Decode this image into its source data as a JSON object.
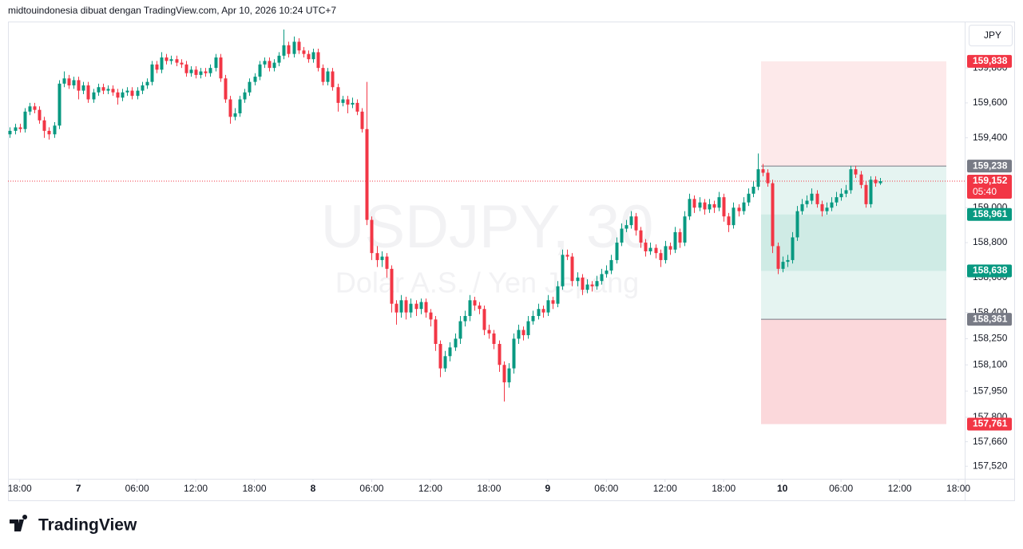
{
  "header": {
    "caption": "midtouindonesia dibuat dengan TradingView.com, Apr 10, 2026 10:24 UTC+7",
    "currency_button": "JPY"
  },
  "footer": {
    "brand": "TradingView"
  },
  "chart_data": {
    "type": "candlestick",
    "title": "USDJPY, 30",
    "subtitle": "Dolar A.S. / Yen Jepang",
    "up_color": "#089981",
    "down_color": "#f23645",
    "xlim": [
      -0.4,
      195.3
    ],
    "xticks": [
      {
        "value": 2,
        "label": "18:00"
      },
      {
        "value": 14,
        "label": "7"
      },
      {
        "value": 26,
        "label": "06:00"
      },
      {
        "value": 38,
        "label": "12:00"
      },
      {
        "value": 50,
        "label": "18:00"
      },
      {
        "value": 62,
        "label": "8"
      },
      {
        "value": 74,
        "label": "06:00"
      },
      {
        "value": 86,
        "label": "12:00"
      },
      {
        "value": 98,
        "label": "18:00"
      },
      {
        "value": 110,
        "label": "9"
      },
      {
        "value": 122,
        "label": "06:00"
      },
      {
        "value": 134,
        "label": "12:00"
      },
      {
        "value": 146,
        "label": "18:00"
      },
      {
        "value": 158,
        "label": "10"
      },
      {
        "value": 170,
        "label": "06:00"
      },
      {
        "value": 182,
        "label": "12:00"
      },
      {
        "value": 194,
        "label": "18:00"
      }
    ],
    "ylim": [
      157.448,
      160.061
    ],
    "yticks": [
      {
        "value": 159.8,
        "label": "159,800"
      },
      {
        "value": 159.6,
        "label": "159,600"
      },
      {
        "value": 159.4,
        "label": "159,400"
      },
      {
        "value": 159.0,
        "label": "159,000"
      },
      {
        "value": 158.8,
        "label": "158,800"
      },
      {
        "value": 158.6,
        "label": "158,600"
      },
      {
        "value": 158.4,
        "label": "158,400"
      },
      {
        "value": 158.25,
        "label": "158,250"
      },
      {
        "value": 158.1,
        "label": "158,100"
      },
      {
        "value": 157.95,
        "label": "157,950"
      },
      {
        "value": 157.8,
        "label": "157,800"
      },
      {
        "value": 157.66,
        "label": "157,660"
      },
      {
        "value": 157.52,
        "label": "157,520"
      }
    ],
    "zones": [
      {
        "top": 159.838,
        "bottom": 159.238,
        "color": "#fde9ea"
      },
      {
        "top": 159.238,
        "bottom": 158.361,
        "color": "#e5f4f1"
      },
      {
        "top": 158.961,
        "bottom": 158.638,
        "color": "#cfebe5"
      },
      {
        "top": 158.361,
        "bottom": 157.761,
        "color": "#fbd8db"
      }
    ],
    "price_tags": [
      {
        "value": 159.838,
        "label": "159,838",
        "color": "#f23645"
      },
      {
        "value": 159.238,
        "label": "159,238",
        "color": "#787b86"
      },
      {
        "value": 158.961,
        "label": "158,961",
        "color": "#089981"
      },
      {
        "value": 158.638,
        "label": "158,638",
        "color": "#089981"
      },
      {
        "value": 158.361,
        "label": "158,361",
        "color": "#787b86"
      },
      {
        "value": 157.761,
        "label": "157,761",
        "color": "#f23645"
      }
    ],
    "last_price": {
      "value": 159.152,
      "label": "159,152",
      "countdown": "05:40",
      "color": "#f23645"
    },
    "candles": [
      [
        159.42,
        159.46,
        159.4,
        159.44
      ],
      [
        159.44,
        159.48,
        159.42,
        159.46
      ],
      [
        159.46,
        159.48,
        159.43,
        159.45
      ],
      [
        159.45,
        159.57,
        159.43,
        159.55
      ],
      [
        159.55,
        159.6,
        159.53,
        159.58
      ],
      [
        159.58,
        159.6,
        159.54,
        159.56
      ],
      [
        159.56,
        159.58,
        159.48,
        159.5
      ],
      [
        159.5,
        159.52,
        159.4,
        159.44
      ],
      [
        159.44,
        159.46,
        159.39,
        159.42
      ],
      [
        159.42,
        159.49,
        159.4,
        159.47
      ],
      [
        159.47,
        159.73,
        159.45,
        159.71
      ],
      [
        159.71,
        159.78,
        159.69,
        159.74
      ],
      [
        159.74,
        159.76,
        159.68,
        159.7
      ],
      [
        159.7,
        159.75,
        159.68,
        159.73
      ],
      [
        159.73,
        159.75,
        159.62,
        159.67
      ],
      [
        159.67,
        159.72,
        159.65,
        159.7
      ],
      [
        159.7,
        159.72,
        159.6,
        159.62
      ],
      [
        159.62,
        159.68,
        159.6,
        159.66
      ],
      [
        159.66,
        159.71,
        159.64,
        159.69
      ],
      [
        159.69,
        159.71,
        159.65,
        159.67
      ],
      [
        159.67,
        159.7,
        159.65,
        159.68
      ],
      [
        159.68,
        159.7,
        159.64,
        159.66
      ],
      [
        159.66,
        159.68,
        159.59,
        159.63
      ],
      [
        159.63,
        159.68,
        159.61,
        159.66
      ],
      [
        159.66,
        159.69,
        159.64,
        159.67
      ],
      [
        159.67,
        159.69,
        159.62,
        159.64
      ],
      [
        159.64,
        159.69,
        159.62,
        159.67
      ],
      [
        159.67,
        159.72,
        159.65,
        159.7
      ],
      [
        159.7,
        159.74,
        159.68,
        159.72
      ],
      [
        159.72,
        159.84,
        159.7,
        159.82
      ],
      [
        159.82,
        159.84,
        159.77,
        159.79
      ],
      [
        159.79,
        159.89,
        159.77,
        159.86
      ],
      [
        159.86,
        159.88,
        159.82,
        159.84
      ],
      [
        159.84,
        159.87,
        159.82,
        159.85
      ],
      [
        159.85,
        159.87,
        159.81,
        159.83
      ],
      [
        159.83,
        159.85,
        159.8,
        159.82
      ],
      [
        159.82,
        159.84,
        159.75,
        159.77
      ],
      [
        159.77,
        159.81,
        159.75,
        159.79
      ],
      [
        159.79,
        159.81,
        159.74,
        159.76
      ],
      [
        159.76,
        159.8,
        159.74,
        159.78
      ],
      [
        159.78,
        159.8,
        159.75,
        159.77
      ],
      [
        159.77,
        159.82,
        159.75,
        159.8
      ],
      [
        159.8,
        159.88,
        159.78,
        159.86
      ],
      [
        159.86,
        159.88,
        159.72,
        159.74
      ],
      [
        159.74,
        159.76,
        159.6,
        159.62
      ],
      [
        159.62,
        159.64,
        159.48,
        159.52
      ],
      [
        159.52,
        159.57,
        159.5,
        159.54
      ],
      [
        159.54,
        159.64,
        159.52,
        159.62
      ],
      [
        159.62,
        159.68,
        159.6,
        159.66
      ],
      [
        159.66,
        159.74,
        159.64,
        159.72
      ],
      [
        159.72,
        159.77,
        159.7,
        159.75
      ],
      [
        159.75,
        159.84,
        159.73,
        159.82
      ],
      [
        159.82,
        159.86,
        159.8,
        159.84
      ],
      [
        159.84,
        159.86,
        159.78,
        159.8
      ],
      [
        159.8,
        159.85,
        159.78,
        159.83
      ],
      [
        159.83,
        159.89,
        159.81,
        159.87
      ],
      [
        159.87,
        160.02,
        159.85,
        159.93
      ],
      [
        159.93,
        159.95,
        159.86,
        159.88
      ],
      [
        159.88,
        159.98,
        159.86,
        159.95
      ],
      [
        159.95,
        159.97,
        159.88,
        159.9
      ],
      [
        159.9,
        159.92,
        159.86,
        159.88
      ],
      [
        159.88,
        159.9,
        159.83,
        159.85
      ],
      [
        159.85,
        159.91,
        159.83,
        159.89
      ],
      [
        159.89,
        159.91,
        159.78,
        159.8
      ],
      [
        159.8,
        159.82,
        159.7,
        159.72
      ],
      [
        159.72,
        159.8,
        159.7,
        159.78
      ],
      [
        159.78,
        159.8,
        159.67,
        159.69
      ],
      [
        159.69,
        159.71,
        159.55,
        159.6
      ],
      [
        159.6,
        159.64,
        159.58,
        159.62
      ],
      [
        159.62,
        159.64,
        159.54,
        159.59
      ],
      [
        159.59,
        159.63,
        159.57,
        159.6
      ],
      [
        159.6,
        159.62,
        159.53,
        159.55
      ],
      [
        159.55,
        159.57,
        159.43,
        159.45
      ],
      [
        159.45,
        159.72,
        158.9,
        158.93
      ],
      [
        158.93,
        158.95,
        158.7,
        158.74
      ],
      [
        158.74,
        158.78,
        158.66,
        158.7
      ],
      [
        158.7,
        158.75,
        158.66,
        158.72
      ],
      [
        158.72,
        158.74,
        158.6,
        158.65
      ],
      [
        158.65,
        158.67,
        158.4,
        158.45
      ],
      [
        158.45,
        158.47,
        158.33,
        158.4
      ],
      [
        158.4,
        158.5,
        158.37,
        158.47
      ],
      [
        158.47,
        158.49,
        158.36,
        158.4
      ],
      [
        158.4,
        158.48,
        158.37,
        158.45
      ],
      [
        158.45,
        158.47,
        158.38,
        158.42
      ],
      [
        158.42,
        158.48,
        158.39,
        158.46
      ],
      [
        158.46,
        158.48,
        158.37,
        158.4
      ],
      [
        158.4,
        158.42,
        158.32,
        158.36
      ],
      [
        158.36,
        158.38,
        158.18,
        158.22
      ],
      [
        158.22,
        158.24,
        158.03,
        158.08
      ],
      [
        158.08,
        158.18,
        158.06,
        158.15
      ],
      [
        158.15,
        158.23,
        158.12,
        158.2
      ],
      [
        158.2,
        158.28,
        158.18,
        158.25
      ],
      [
        158.25,
        158.38,
        158.22,
        158.35
      ],
      [
        158.35,
        158.41,
        158.32,
        158.38
      ],
      [
        158.38,
        158.5,
        158.35,
        158.47
      ],
      [
        158.47,
        158.49,
        158.41,
        158.44
      ],
      [
        158.44,
        158.46,
        158.39,
        158.42
      ],
      [
        158.42,
        158.44,
        158.27,
        158.3
      ],
      [
        158.3,
        158.33,
        158.25,
        158.28
      ],
      [
        158.28,
        158.3,
        158.19,
        158.22
      ],
      [
        158.22,
        158.24,
        158.06,
        158.1
      ],
      [
        158.1,
        158.12,
        157.89,
        158.0
      ],
      [
        158.0,
        158.11,
        157.97,
        158.08
      ],
      [
        158.08,
        158.28,
        158.05,
        158.25
      ],
      [
        158.25,
        158.33,
        158.22,
        158.3
      ],
      [
        158.3,
        158.32,
        158.24,
        158.27
      ],
      [
        158.27,
        158.38,
        158.25,
        158.35
      ],
      [
        158.35,
        158.41,
        158.33,
        158.38
      ],
      [
        158.38,
        158.45,
        158.36,
        158.42
      ],
      [
        158.42,
        158.44,
        158.37,
        158.4
      ],
      [
        158.4,
        158.5,
        158.38,
        158.47
      ],
      [
        158.47,
        158.49,
        158.42,
        158.45
      ],
      [
        158.45,
        158.58,
        158.43,
        158.55
      ],
      [
        158.55,
        158.76,
        158.53,
        158.73
      ],
      [
        158.73,
        158.76,
        158.7,
        158.72
      ],
      [
        158.72,
        158.74,
        158.55,
        158.58
      ],
      [
        158.58,
        158.63,
        158.55,
        158.6
      ],
      [
        158.6,
        158.62,
        158.5,
        158.53
      ],
      [
        158.53,
        158.59,
        158.51,
        158.56
      ],
      [
        158.56,
        158.58,
        158.52,
        158.55
      ],
      [
        158.55,
        158.61,
        158.53,
        158.58
      ],
      [
        158.58,
        158.65,
        158.56,
        158.62
      ],
      [
        158.62,
        158.67,
        158.6,
        158.64
      ],
      [
        158.64,
        158.73,
        158.62,
        158.7
      ],
      [
        158.7,
        158.83,
        158.68,
        158.8
      ],
      [
        158.8,
        158.91,
        158.78,
        158.88
      ],
      [
        158.88,
        158.93,
        158.86,
        158.9
      ],
      [
        158.9,
        158.98,
        158.88,
        158.95
      ],
      [
        158.95,
        158.97,
        158.84,
        158.87
      ],
      [
        158.87,
        158.89,
        158.77,
        158.8
      ],
      [
        158.8,
        158.82,
        158.72,
        158.75
      ],
      [
        158.75,
        158.8,
        158.73,
        158.77
      ],
      [
        158.77,
        158.79,
        158.71,
        158.74
      ],
      [
        158.74,
        158.76,
        158.66,
        158.7
      ],
      [
        158.7,
        158.81,
        158.68,
        158.78
      ],
      [
        158.78,
        158.8,
        158.73,
        158.76
      ],
      [
        158.76,
        158.89,
        158.74,
        158.86
      ],
      [
        158.86,
        158.88,
        158.77,
        158.8
      ],
      [
        158.8,
        158.98,
        158.78,
        158.95
      ],
      [
        158.95,
        159.08,
        158.93,
        159.05
      ],
      [
        159.05,
        159.07,
        158.97,
        159.0
      ],
      [
        159.0,
        159.06,
        158.98,
        159.03
      ],
      [
        159.03,
        159.05,
        158.96,
        158.99
      ],
      [
        158.99,
        159.05,
        158.97,
        159.02
      ],
      [
        159.02,
        159.04,
        158.97,
        159.0
      ],
      [
        159.0,
        159.09,
        158.98,
        159.06
      ],
      [
        159.06,
        159.08,
        158.92,
        158.95
      ],
      [
        158.95,
        158.97,
        158.86,
        158.9
      ],
      [
        158.9,
        159.03,
        158.88,
        159.0
      ],
      [
        159.0,
        159.02,
        158.95,
        158.98
      ],
      [
        158.98,
        159.06,
        158.96,
        159.03
      ],
      [
        159.03,
        159.11,
        159.01,
        159.08
      ],
      [
        159.08,
        159.15,
        159.06,
        159.12
      ],
      [
        159.12,
        159.31,
        159.1,
        159.22
      ],
      [
        159.22,
        159.25,
        159.18,
        159.2
      ],
      [
        159.2,
        159.22,
        159.12,
        159.14
      ],
      [
        159.14,
        159.16,
        158.74,
        158.78
      ],
      [
        158.78,
        158.8,
        158.62,
        158.65
      ],
      [
        158.65,
        158.72,
        158.63,
        158.69
      ],
      [
        158.69,
        158.73,
        158.66,
        158.7
      ],
      [
        158.7,
        158.86,
        158.68,
        158.83
      ],
      [
        158.83,
        159.01,
        158.81,
        158.98
      ],
      [
        158.98,
        159.05,
        158.96,
        159.02
      ],
      [
        159.02,
        159.07,
        159.0,
        159.04
      ],
      [
        159.04,
        159.11,
        159.02,
        159.08
      ],
      [
        159.08,
        159.1,
        159.0,
        159.02
      ],
      [
        159.02,
        159.04,
        158.95,
        158.98
      ],
      [
        158.98,
        159.03,
        158.96,
        159.0
      ],
      [
        159.0,
        159.06,
        158.98,
        159.03
      ],
      [
        159.03,
        159.09,
        159.01,
        159.06
      ],
      [
        159.06,
        159.11,
        159.04,
        159.08
      ],
      [
        159.08,
        159.13,
        159.06,
        159.1
      ],
      [
        159.1,
        159.24,
        159.08,
        159.22
      ],
      [
        159.22,
        159.24,
        159.17,
        159.19
      ],
      [
        159.19,
        159.21,
        159.11,
        159.13
      ],
      [
        159.13,
        159.15,
        159.0,
        159.02
      ],
      [
        159.02,
        159.18,
        159.0,
        159.16
      ],
      [
        159.16,
        159.18,
        159.12,
        159.14
      ],
      [
        159.14,
        159.17,
        159.13,
        159.152
      ]
    ]
  }
}
